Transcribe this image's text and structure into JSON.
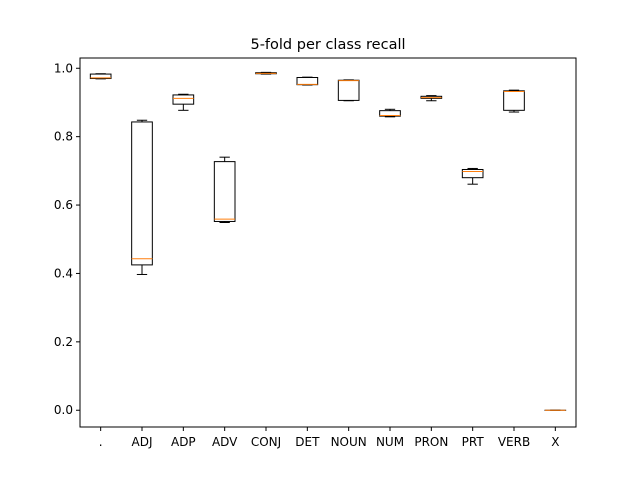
{
  "chart_data": {
    "type": "box",
    "title": "5-fold per class recall",
    "xlabel": "",
    "ylabel": "",
    "ylim": [
      -0.049,
      1.03
    ],
    "yticks": [
      0.0,
      0.2,
      0.4,
      0.6,
      0.8,
      1.0
    ],
    "ytick_labels": [
      "0.0",
      "0.2",
      "0.4",
      "0.6",
      "0.8",
      "1.0"
    ],
    "grid": false,
    "legend": "none",
    "median_color": "#ff7f0e",
    "box_color": "#000000",
    "categories": [
      ".",
      "ADJ",
      "ADP",
      "ADV",
      "CONJ",
      "DET",
      "NOUN",
      "NUM",
      "PRON",
      "PRT",
      "VERB",
      "X"
    ],
    "boxes": [
      {
        "label": ".",
        "whislo": 0.969,
        "q1": 0.97,
        "med": 0.972,
        "q3": 0.983,
        "whishi": 0.984
      },
      {
        "label": "ADJ",
        "whislo": 0.397,
        "q1": 0.425,
        "med": 0.443,
        "q3": 0.843,
        "whishi": 0.848
      },
      {
        "label": "ADP",
        "whislo": 0.877,
        "q1": 0.895,
        "med": 0.912,
        "q3": 0.922,
        "whishi": 0.924
      },
      {
        "label": "ADV",
        "whislo": 0.549,
        "q1": 0.552,
        "med": 0.559,
        "q3": 0.727,
        "whishi": 0.74
      },
      {
        "label": "CONJ",
        "whislo": 0.983,
        "q1": 0.984,
        "med": 0.985,
        "q3": 0.987,
        "whishi": 0.988
      },
      {
        "label": "DET",
        "whislo": 0.951,
        "q1": 0.952,
        "med": 0.953,
        "q3": 0.973,
        "whishi": 0.974
      },
      {
        "label": "NOUN",
        "whislo": 0.905,
        "q1": 0.906,
        "med": 0.964,
        "q3": 0.965,
        "whishi": 0.966
      },
      {
        "label": "NUM",
        "whislo": 0.858,
        "q1": 0.86,
        "med": 0.862,
        "q3": 0.876,
        "whishi": 0.88
      },
      {
        "label": "PRON",
        "whislo": 0.905,
        "q1": 0.912,
        "med": 0.914,
        "q3": 0.918,
        "whishi": 0.92
      },
      {
        "label": "PRT",
        "whislo": 0.661,
        "q1": 0.68,
        "med": 0.698,
        "q3": 0.704,
        "whishi": 0.707
      },
      {
        "label": "VERB",
        "whislo": 0.872,
        "q1": 0.877,
        "med": 0.932,
        "q3": 0.934,
        "whishi": 0.936
      },
      {
        "label": "X",
        "whislo": 0.0,
        "q1": 0.0,
        "med": 0.0,
        "q3": 0.0,
        "whishi": 0.0
      }
    ]
  }
}
